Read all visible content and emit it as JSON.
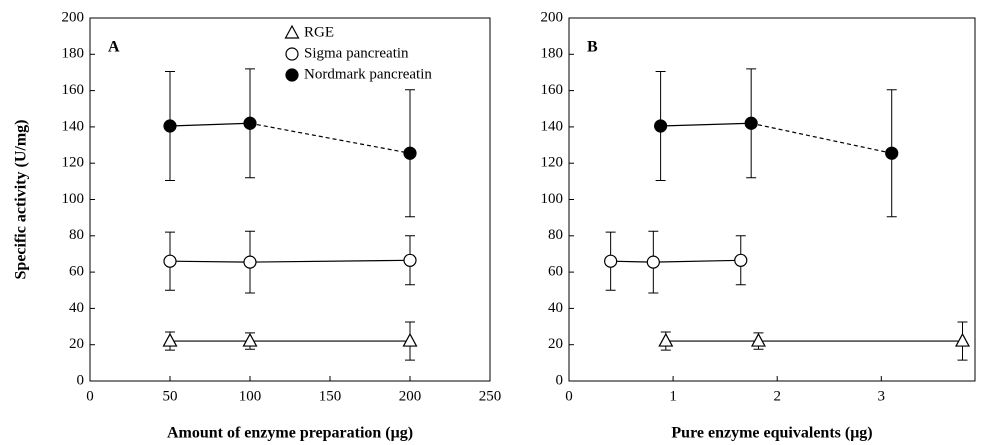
{
  "chart_data": [
    {
      "type": "line",
      "panel_label": "A",
      "xlabel": "Amount of enzyme preparation (μg)",
      "ylabel": "Specific activity (U/mg)",
      "xlim": [
        0,
        250
      ],
      "xticks": [
        0,
        50,
        100,
        150,
        200,
        250
      ],
      "ylim": [
        0,
        200
      ],
      "yticks": [
        0,
        20,
        40,
        60,
        80,
        100,
        120,
        140,
        160,
        180,
        200
      ],
      "legend": true,
      "series": [
        {
          "name": "RGE",
          "color": "#000000",
          "marker": "triangle",
          "filled": false,
          "x": [
            50,
            100,
            200
          ],
          "values": [
            22,
            22,
            22
          ],
          "errors": [
            5,
            4.5,
            10.5
          ],
          "segment_styles": [
            "solid",
            "solid"
          ]
        },
        {
          "name": "Sigma pancreatin",
          "color": "#000000",
          "marker": "circle",
          "filled": false,
          "x": [
            50,
            100,
            200
          ],
          "values": [
            66,
            65.5,
            66.5
          ],
          "errors": [
            16,
            17,
            13.5
          ],
          "segment_styles": [
            "solid",
            "solid"
          ]
        },
        {
          "name": "Nordmark pancreatin",
          "color": "#000000",
          "marker": "circle",
          "filled": true,
          "x": [
            50,
            100,
            200
          ],
          "values": [
            140.5,
            142,
            125.5
          ],
          "errors": [
            30,
            30,
            35
          ],
          "segment_styles": [
            "solid",
            "dashed"
          ]
        }
      ]
    },
    {
      "type": "line",
      "panel_label": "B",
      "xlabel": "Pure enzyme equivalents (μg)",
      "xlim": [
        0,
        3.9
      ],
      "xticks": [
        0,
        1,
        2,
        3
      ],
      "ylim": [
        0,
        200
      ],
      "yticks": [
        0,
        20,
        40,
        60,
        80,
        100,
        120,
        140,
        160,
        180,
        200
      ],
      "legend": false,
      "series": [
        {
          "name": "RGE",
          "color": "#000000",
          "marker": "triangle",
          "filled": false,
          "x": [
            0.93,
            1.82,
            3.78
          ],
          "values": [
            22,
            22,
            22
          ],
          "errors": [
            5,
            4.5,
            10.5
          ],
          "segment_styles": [
            "solid",
            "solid"
          ]
        },
        {
          "name": "Sigma pancreatin",
          "color": "#000000",
          "marker": "circle",
          "filled": false,
          "x": [
            0.4,
            0.81,
            1.65
          ],
          "values": [
            66,
            65.5,
            66.5
          ],
          "errors": [
            16,
            17,
            13.5
          ],
          "segment_styles": [
            "solid",
            "solid"
          ]
        },
        {
          "name": "Nordmark pancreatin",
          "color": "#000000",
          "marker": "circle",
          "filled": true,
          "x": [
            0.88,
            1.75,
            3.1
          ],
          "values": [
            140.5,
            142,
            125.5
          ],
          "errors": [
            30,
            30,
            35
          ],
          "segment_styles": [
            "solid",
            "dashed"
          ]
        }
      ]
    }
  ]
}
